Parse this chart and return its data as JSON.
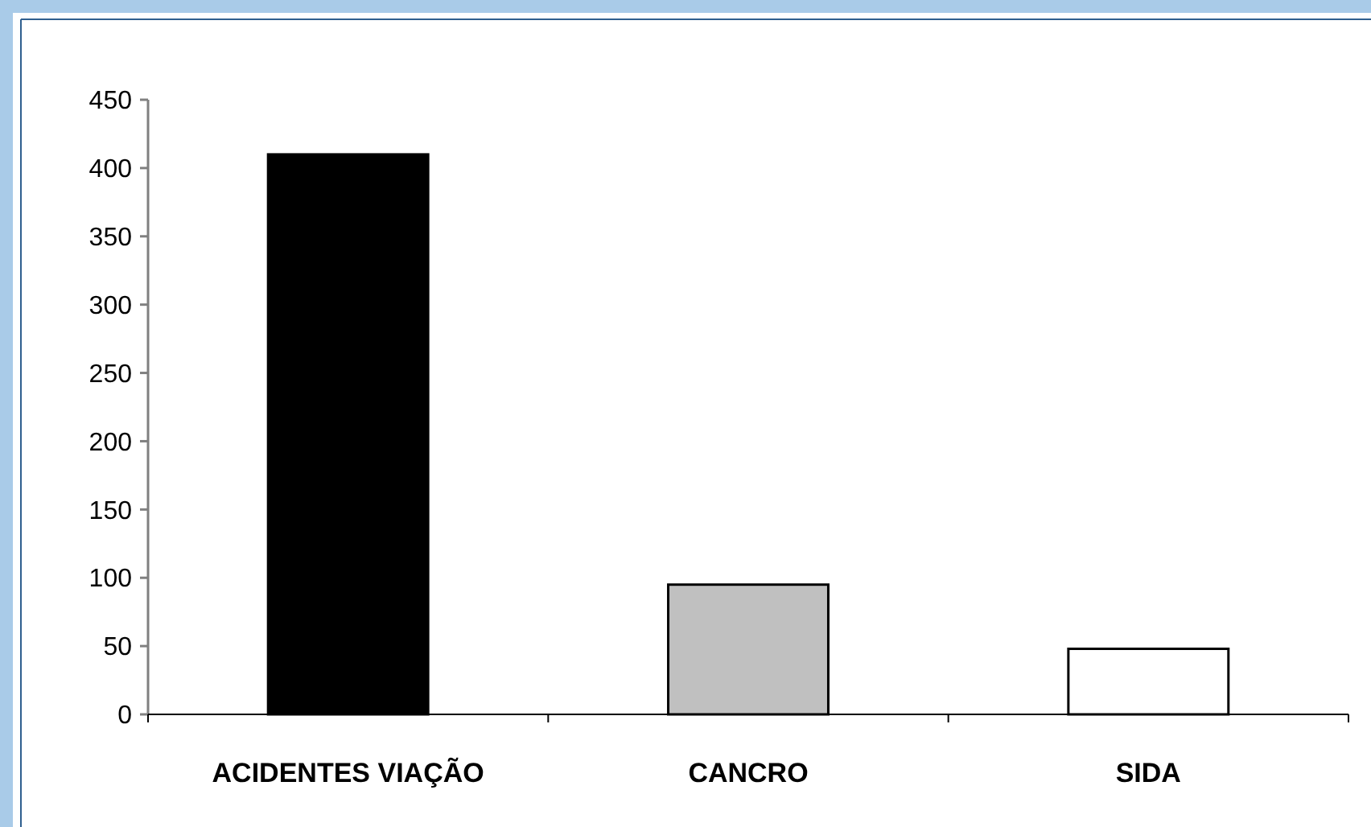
{
  "chart_data": {
    "type": "bar",
    "categories": [
      "ACIDENTES VIAÇÃO",
      "CANCRO",
      "SIDA"
    ],
    "values": [
      410,
      95,
      48
    ],
    "colors": [
      "#000000",
      "#c0c0c0",
      "#ffffff"
    ],
    "ylim": [
      0,
      450
    ],
    "yticks": [
      0,
      50,
      100,
      150,
      200,
      250,
      300,
      350,
      400,
      450
    ]
  }
}
